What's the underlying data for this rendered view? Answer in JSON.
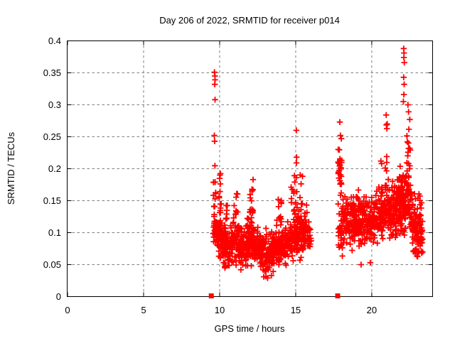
{
  "chart_data": {
    "type": "scatter",
    "title": "Day 206 of 2022, SRMTID for receiver p014",
    "xlabel": "GPS time / hours",
    "ylabel": "SRMTID / TECUs",
    "xlim": [
      0,
      24
    ],
    "ylim": [
      0,
      0.4
    ],
    "xticks": {
      "values": [
        0,
        5,
        10,
        15,
        20
      ],
      "labels": [
        "0",
        "5",
        "10",
        "15",
        "20"
      ]
    },
    "yticks": {
      "values": [
        0,
        0.05,
        0.1,
        0.15,
        0.2,
        0.25,
        0.3,
        0.35,
        0.4
      ],
      "labels": [
        "0",
        "0.05",
        "0.1",
        "0.15",
        "0.2",
        "0.25",
        "0.3",
        "0.35",
        "0.4"
      ]
    },
    "grid": {
      "show": true,
      "color": "#7f7f7f",
      "dash": "3.5,3.5"
    },
    "axis_color": "#000000",
    "background": "#ffffff",
    "series": [
      {
        "name": "srmtid-scatter",
        "marker": "plus",
        "color": "#ff0000",
        "marker_size": 8.4,
        "seed": 11,
        "clusters": [
          {
            "kind": "band",
            "x0": 9.52,
            "x1": 9.8,
            "n": 26,
            "c0": 0.115,
            "c1": 0.105,
            "s": 0.035,
            "min": 0.085,
            "max": 0.16
          },
          {
            "kind": "spike",
            "x0": 9.58,
            "x1": 9.75,
            "n": 8,
            "y0": 0.15,
            "y1": 0.205,
            "p": 1.5
          },
          {
            "kind": "band",
            "x0": 9.8,
            "x1": 10.15,
            "n": 48,
            "c0": 0.1,
            "c1": 0.092,
            "s": 0.032,
            "min": 0.058,
            "max": 0.155
          },
          {
            "kind": "spike",
            "x0": 9.95,
            "x1": 10.12,
            "n": 11,
            "y0": 0.13,
            "y1": 0.195,
            "p": 1.6
          },
          {
            "kind": "band",
            "x0": 10.15,
            "x1": 10.7,
            "n": 72,
            "c0": 0.085,
            "c1": 0.082,
            "s": 0.033,
            "min": 0.046,
            "max": 0.14
          },
          {
            "kind": "spike",
            "x0": 10.38,
            "x1": 10.55,
            "n": 7,
            "y0": 0.12,
            "y1": 0.152,
            "p": 1.4
          },
          {
            "kind": "band",
            "x0": 10.7,
            "x1": 11.3,
            "n": 85,
            "c0": 0.088,
            "c1": 0.085,
            "s": 0.034,
            "min": 0.045,
            "max": 0.145
          },
          {
            "kind": "spike",
            "x0": 10.95,
            "x1": 11.2,
            "n": 9,
            "y0": 0.12,
            "y1": 0.165,
            "p": 1.5
          },
          {
            "kind": "band",
            "x0": 11.3,
            "x1": 11.78,
            "n": 60,
            "c0": 0.078,
            "c1": 0.08,
            "s": 0.03,
            "min": 0.042,
            "max": 0.13
          },
          {
            "kind": "band",
            "x0": 11.78,
            "x1": 12.3,
            "n": 78,
            "c0": 0.088,
            "c1": 0.086,
            "s": 0.038,
            "min": 0.048,
            "max": 0.15
          },
          {
            "kind": "spike",
            "x0": 11.95,
            "x1": 12.28,
            "n": 13,
            "y0": 0.13,
            "y1": 0.19,
            "p": 1.6
          },
          {
            "kind": "band",
            "x0": 12.3,
            "x1": 12.68,
            "n": 50,
            "c0": 0.08,
            "c1": 0.075,
            "s": 0.032,
            "min": 0.04,
            "max": 0.135
          },
          {
            "kind": "band",
            "x0": 12.68,
            "x1": 13.6,
            "n": 112,
            "c0": 0.068,
            "c1": 0.07,
            "s": 0.034,
            "min": 0.028,
            "max": 0.125
          },
          {
            "kind": "band",
            "x0": 13.6,
            "x1": 14.4,
            "n": 92,
            "c0": 0.078,
            "c1": 0.082,
            "s": 0.034,
            "min": 0.035,
            "max": 0.14
          },
          {
            "kind": "spike",
            "x0": 13.85,
            "x1": 14.08,
            "n": 9,
            "y0": 0.12,
            "y1": 0.155,
            "p": 1.4
          },
          {
            "kind": "band",
            "x0": 14.4,
            "x1": 15.0,
            "n": 80,
            "c0": 0.088,
            "c1": 0.1,
            "s": 0.036,
            "min": 0.05,
            "max": 0.16
          },
          {
            "kind": "spike",
            "x0": 14.7,
            "x1": 15.1,
            "n": 14,
            "y0": 0.13,
            "y1": 0.19,
            "p": 1.5
          },
          {
            "kind": "band",
            "x0": 15.0,
            "x1": 15.55,
            "n": 70,
            "c0": 0.1,
            "c1": 0.098,
            "s": 0.04,
            "min": 0.055,
            "max": 0.165
          },
          {
            "kind": "spike",
            "x0": 15.28,
            "x1": 15.48,
            "n": 6,
            "y0": 0.145,
            "y1": 0.2,
            "p": 1.3
          },
          {
            "kind": "band",
            "x0": 15.55,
            "x1": 16.05,
            "n": 45,
            "c0": 0.1,
            "c1": 0.092,
            "s": 0.035,
            "min": 0.06,
            "max": 0.15
          },
          {
            "kind": "band",
            "x0": 17.78,
            "x1": 18.02,
            "n": 26,
            "c0": 0.195,
            "c1": 0.19,
            "s": 0.04,
            "min": 0.145,
            "max": 0.248
          },
          {
            "kind": "band",
            "x0": 17.78,
            "x1": 18.1,
            "n": 30,
            "c0": 0.108,
            "c1": 0.11,
            "s": 0.042,
            "min": 0.063,
            "max": 0.15
          },
          {
            "kind": "band",
            "x0": 18.1,
            "x1": 18.85,
            "n": 92,
            "c0": 0.115,
            "c1": 0.118,
            "s": 0.042,
            "min": 0.05,
            "max": 0.205
          },
          {
            "kind": "band",
            "x0": 18.85,
            "x1": 19.6,
            "n": 92,
            "c0": 0.12,
            "c1": 0.118,
            "s": 0.042,
            "min": 0.048,
            "max": 0.2
          },
          {
            "kind": "band",
            "x0": 19.6,
            "x1": 20.3,
            "n": 82,
            "c0": 0.115,
            "c1": 0.12,
            "s": 0.04,
            "min": 0.052,
            "max": 0.195
          },
          {
            "kind": "band",
            "x0": 20.3,
            "x1": 21.1,
            "n": 108,
            "c0": 0.125,
            "c1": 0.132,
            "s": 0.044,
            "min": 0.065,
            "max": 0.22
          },
          {
            "kind": "spike",
            "x0": 20.85,
            "x1": 21.15,
            "n": 10,
            "y0": 0.17,
            "y1": 0.285,
            "p": 1.7
          },
          {
            "kind": "band",
            "x0": 21.1,
            "x1": 21.7,
            "n": 95,
            "c0": 0.13,
            "c1": 0.14,
            "s": 0.046,
            "min": 0.07,
            "max": 0.23
          },
          {
            "kind": "band",
            "x0": 21.7,
            "x1": 22.6,
            "n": 150,
            "c0": 0.15,
            "c1": 0.15,
            "s": 0.05,
            "min": 0.075,
            "max": 0.255
          },
          {
            "kind": "spike",
            "x0": 22.28,
            "x1": 22.58,
            "n": 12,
            "y0": 0.2,
            "y1": 0.268,
            "p": 1.5
          },
          {
            "kind": "band",
            "x0": 22.6,
            "x1": 23.35,
            "n": 112,
            "c0": 0.12,
            "c1": 0.105,
            "s": 0.044,
            "min": 0.062,
            "max": 0.195
          }
        ],
        "outlier_points": [
          [
            9.66,
            0.351
          ],
          [
            9.69,
            0.345
          ],
          [
            9.7,
            0.339
          ],
          [
            9.68,
            0.332
          ],
          [
            9.7,
            0.308
          ],
          [
            9.65,
            0.252
          ],
          [
            9.67,
            0.243
          ],
          [
            10.02,
            0.19
          ],
          [
            12.2,
            0.183
          ],
          [
            10.35,
            0.045
          ],
          [
            11.4,
            0.042
          ],
          [
            12.9,
            0.031
          ],
          [
            13.15,
            0.029
          ],
          [
            13.4,
            0.033
          ],
          [
            15.04,
            0.26
          ],
          [
            15.06,
            0.218
          ],
          [
            15.05,
            0.209
          ],
          [
            15.04,
            0.186
          ],
          [
            15.07,
            0.164
          ],
          [
            17.9,
            0.273
          ],
          [
            17.94,
            0.252
          ],
          [
            18.0,
            0.247
          ],
          [
            19.3,
            0.05
          ],
          [
            19.9,
            0.053
          ],
          [
            20.6,
            0.212
          ],
          [
            20.65,
            0.208
          ],
          [
            20.95,
            0.284
          ],
          [
            21.02,
            0.27
          ],
          [
            22.1,
            0.388
          ],
          [
            22.12,
            0.381
          ],
          [
            22.11,
            0.374
          ],
          [
            22.14,
            0.366
          ],
          [
            22.1,
            0.343
          ],
          [
            22.13,
            0.332
          ],
          [
            22.11,
            0.316
          ],
          [
            22.08,
            0.305
          ],
          [
            22.38,
            0.3
          ],
          [
            22.42,
            0.289
          ],
          [
            22.5,
            0.277
          ]
        ]
      },
      {
        "name": "axis-event-markers",
        "marker": "filled-square",
        "color": "#ff0000",
        "marker_size": 7,
        "points": [
          [
            9.45,
            0
          ],
          [
            17.76,
            0
          ]
        ]
      }
    ]
  }
}
